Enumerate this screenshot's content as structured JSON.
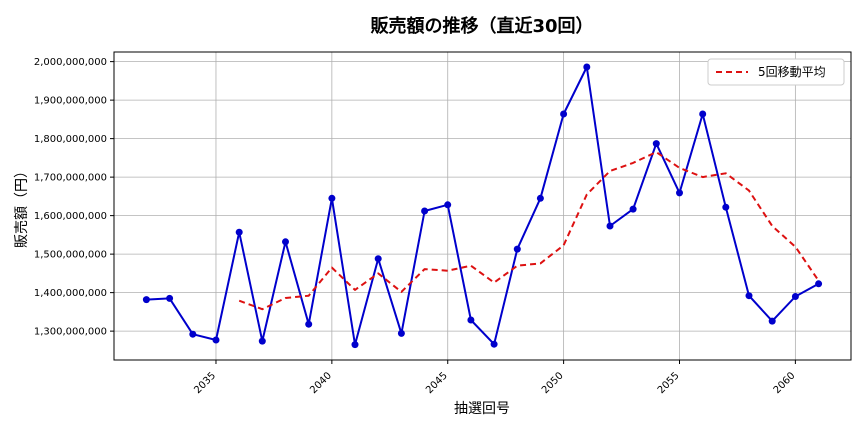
{
  "chart_data": {
    "type": "line",
    "title": "販売額の推移（直近30回）",
    "xlabel": "抽選回号",
    "ylabel": "販売額（円）",
    "xlim": [
      2030.6,
      2062.4
    ],
    "ylim": [
      1225000000,
      2025000000
    ],
    "grid": true,
    "legend_position": "top-right",
    "x_ticks": [
      2035,
      2040,
      2045,
      2050,
      2055,
      2060
    ],
    "y_ticks": [
      1300000000,
      1400000000,
      1500000000,
      1600000000,
      1700000000,
      1800000000,
      1900000000,
      2000000000
    ],
    "y_tick_labels": [
      "1,300,000,000",
      "1,400,000,000",
      "1,500,000,000",
      "1,600,000,000",
      "1,700,000,000",
      "1,800,000,000",
      "1,900,000,000",
      "2,000,000,000"
    ],
    "x": [
      2032,
      2033,
      2034,
      2035,
      2036,
      2037,
      2038,
      2039,
      2040,
      2041,
      2042,
      2043,
      2044,
      2045,
      2046,
      2047,
      2048,
      2049,
      2050,
      2051,
      2052,
      2053,
      2054,
      2055,
      2056,
      2057,
      2058,
      2059,
      2060,
      2061
    ],
    "series": [
      {
        "style": "solid",
        "color": "#0000cc",
        "marker": "circle",
        "values": [
          1382000000,
          1385000000,
          1292000000,
          1277000000,
          1557000000,
          1274000000,
          1532000000,
          1318000000,
          1645000000,
          1265000000,
          1488000000,
          1294000000,
          1612000000,
          1628000000,
          1329000000,
          1266000000,
          1513000000,
          1645000000,
          1864000000,
          1986000000,
          1573000000,
          1617000000,
          1787000000,
          1659000000,
          1864000000,
          1622000000,
          1392000000,
          1326000000,
          1390000000,
          1423000000
        ]
      },
      {
        "name": "5回移動平均",
        "style": "dashed",
        "color": "#dd1111",
        "values": [
          null,
          null,
          null,
          null,
          1379000000,
          1357000000,
          1386000000,
          1392000000,
          1465000000,
          1407000000,
          1450000000,
          1402000000,
          1461000000,
          1457000000,
          1470000000,
          1426000000,
          1470000000,
          1476000000,
          1523000000,
          1655000000,
          1716000000,
          1737000000,
          1765000000,
          1724000000,
          1700000000,
          1710000000,
          1665000000,
          1573000000,
          1519000000,
          1431000000
        ]
      }
    ]
  }
}
